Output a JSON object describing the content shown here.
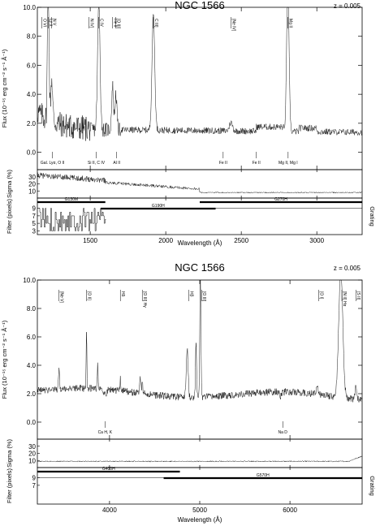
{
  "chart_data": [
    {
      "type": "line",
      "title": "NGC 1566",
      "redshift_label": "z = 0.005",
      "xlabel": "Wavelength (Å)",
      "ylabel": "Flux (10⁻¹⁵ erg cm⁻² s⁻¹ Å⁻¹)",
      "sigma_label": "Sigma (%)",
      "filter_label": "Filter (pixels)",
      "grating_label": "Grating",
      "xlim": [
        1150,
        3300
      ],
      "ylim": [
        -1.2,
        10.0
      ],
      "xticks": [
        1500,
        2000,
        2500,
        3000
      ],
      "yticks": [
        0.0,
        2.0,
        4.0,
        6.0,
        8.0,
        10.0
      ],
      "sigma_ticks": [
        10,
        20,
        30
      ],
      "filter_ticks": [
        3,
        5,
        7,
        9
      ],
      "gratings": [
        {
          "name": "G130M",
          "from": 1150,
          "to": 1600
        },
        {
          "name": "G190H",
          "from": 1570,
          "to": 2330
        },
        {
          "name": "G270H",
          "from": 2225,
          "to": 3300
        }
      ],
      "emission_lines": [
        {
          "label": "O VI",
          "x": 1180
        },
        {
          "label": "Ly α",
          "x": 1222
        },
        {
          "label": "N V",
          "x": 1245
        },
        {
          "label": "N IV]",
          "x": 1490
        },
        {
          "label": "C IV",
          "x": 1557
        },
        {
          "label": "He II",
          "x": 1648
        },
        {
          "label": "[O III]",
          "x": 1670
        },
        {
          "label": "C III]",
          "x": 1918
        },
        {
          "label": "[Ne IV]",
          "x": 2432
        },
        {
          "label": "Mg II",
          "x": 2808
        }
      ],
      "absorption_lines": [
        {
          "label": "Gal. Lyα, O II",
          "x": 1250
        },
        {
          "label": "Si II, C IV",
          "x": 1540
        },
        {
          "label": "Al II",
          "x": 1675
        },
        {
          "label": "Fe II",
          "x": 2380
        },
        {
          "label": "Fe II",
          "x": 2600
        },
        {
          "label": "Mg II, Mg I",
          "x": 2810
        }
      ]
    },
    {
      "type": "line",
      "title": "NGC 1566",
      "redshift_label": "z = 0.005",
      "xlabel": "Wavelength (Å)",
      "ylabel": "Flux (10⁻¹⁵ erg cm⁻² s⁻¹ Å⁻¹)",
      "sigma_label": "Sigma (%)",
      "filter_label": "Filter (pixels)",
      "grating_label": "Grating",
      "xlim": [
        3200,
        6800
      ],
      "ylim": [
        -1.2,
        10.0
      ],
      "xticks": [
        4000,
        5000,
        6000
      ],
      "yticks": [
        0.0,
        2.0,
        4.0,
        6.0,
        8.0,
        10.0
      ],
      "sigma_ticks": [
        10,
        20,
        30
      ],
      "filter_ticks": [
        7,
        9
      ],
      "gratings": [
        {
          "name": "G400H",
          "from": 3200,
          "to": 4780
        },
        {
          "name": "G570H",
          "from": 4600,
          "to": 6800
        }
      ],
      "emission_lines": [
        {
          "label": "[Ne V]",
          "x": 3440
        },
        {
          "label": "[O II]",
          "x": 3745
        },
        {
          "label": "Hδ",
          "x": 4120
        },
        {
          "label": "[O III] Hγ",
          "x": 4363
        },
        {
          "label": "Hβ",
          "x": 4880
        },
        {
          "label": "[O III]",
          "x": 5020
        },
        {
          "label": "[O I]",
          "x": 6320
        },
        {
          "label": "[N II] Hα",
          "x": 6575
        },
        {
          "label": "[S II]",
          "x": 6730
        }
      ],
      "absorption_lines": [
        {
          "label": "Ca H, K",
          "x": 3950
        },
        {
          "label": "Na D",
          "x": 5920
        }
      ]
    }
  ]
}
